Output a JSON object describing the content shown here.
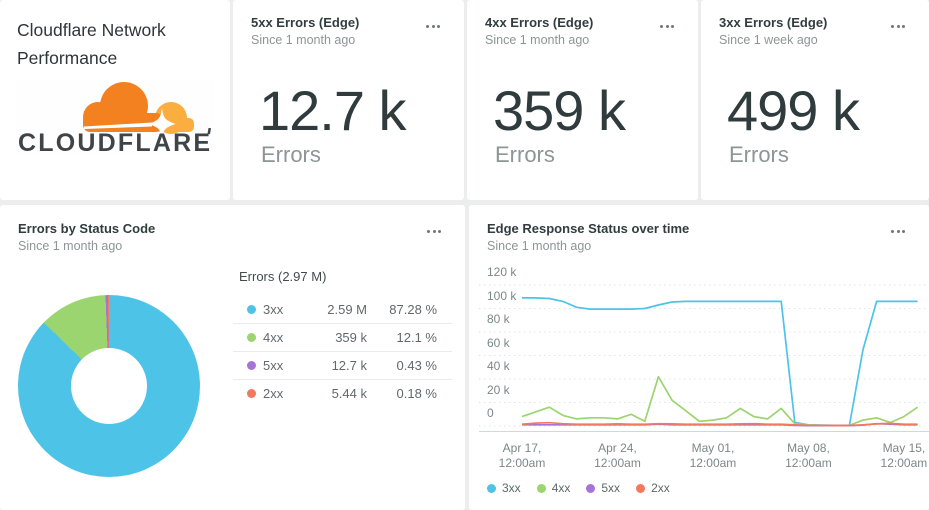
{
  "brand": {
    "title_lines": [
      "Cloudflare Network",
      "Performance"
    ],
    "logo_text": "CLOUDFLARE",
    "logo_orange": "#F48120",
    "logo_orange_light": "#FAAE40",
    "logo_text_color": "#3f4448"
  },
  "stat_cards": [
    {
      "title": "5xx Errors (Edge)",
      "subtitle": "Since 1 month ago",
      "value": "12.7 k",
      "unit": "Errors"
    },
    {
      "title": "4xx Errors (Edge)",
      "subtitle": "Since 1 month ago",
      "value": "359 k",
      "unit": "Errors"
    },
    {
      "title": "3xx Errors (Edge)",
      "subtitle": "Since 1 week ago",
      "value": "499 k",
      "unit": "Errors"
    }
  ],
  "pie_panel": {
    "title": "Errors by Status Code",
    "subtitle": "Since 1 month ago",
    "table_header": "Errors (2.97 M)"
  },
  "time_panel": {
    "title": "Edge Response Status over time",
    "subtitle": "Since 1 month ago"
  },
  "chart_data": [
    {
      "type": "pie",
      "donut": true,
      "title": "Errors by Status Code",
      "timeframe": "Since 1 month ago",
      "total_label": "Errors (2.97 M)",
      "total": "2.97 M",
      "slices": [
        {
          "label": "3xx",
          "value": "2.59 M",
          "pct": 87.28,
          "pct_label": "87.28 %",
          "color": "#4ec3e8"
        },
        {
          "label": "4xx",
          "value": "359 k",
          "pct": 12.1,
          "pct_label": "12.1 %",
          "color": "#9bd56f"
        },
        {
          "label": "5xx",
          "value": "12.7 k",
          "pct": 0.43,
          "pct_label": "0.43 %",
          "color": "#a873d6"
        },
        {
          "label": "2xx",
          "value": "5.44 k",
          "pct": 0.18,
          "pct_label": "0.18 %",
          "color": "#f3795e"
        }
      ]
    },
    {
      "type": "line",
      "title": "Edge Response Status over time",
      "timeframe": "Since 1 month ago",
      "x_unit": "day",
      "x_days": 30,
      "x_ticks": [
        {
          "day": 0,
          "line1": "Apr 17,",
          "line2": "12:00am"
        },
        {
          "day": 7,
          "line1": "Apr 24,",
          "line2": "12:00am"
        },
        {
          "day": 14,
          "line1": "May 01,",
          "line2": "12:00am"
        },
        {
          "day": 21,
          "line1": "May 08,",
          "line2": "12:00am"
        },
        {
          "day": 28,
          "line1": "May 15,",
          "line2": "12:00am"
        }
      ],
      "ylim_k": [
        0,
        120
      ],
      "y_ticks": [
        {
          "v": 120,
          "label": "120 k"
        },
        {
          "v": 100,
          "label": "100 k"
        },
        {
          "v": 80,
          "label": "80 k"
        },
        {
          "v": 60,
          "label": "60 k"
        },
        {
          "v": 40,
          "label": "40 k"
        },
        {
          "v": 20,
          "label": "20 k"
        },
        {
          "v": 0,
          "label": "0"
        }
      ],
      "grid": "dotted-horizontal",
      "legend_position": "bottom",
      "values_unit": "thousands",
      "series": [
        {
          "name": "3xx",
          "color": "#4ec3e8",
          "values_k": [
            109,
            109,
            108.5,
            106,
            101,
            99.5,
            99.5,
            99.5,
            99.5,
            100,
            103,
            105.5,
            106,
            106,
            106,
            106,
            106,
            106,
            106,
            106,
            3,
            1,
            0.8,
            0.6,
            0.5,
            65,
            106,
            106,
            106,
            106
          ]
        },
        {
          "name": "4xx",
          "color": "#9bd56f",
          "values_k": [
            8,
            12,
            16,
            9,
            6,
            7,
            7,
            6,
            10,
            4,
            42,
            22,
            13,
            4,
            5,
            7,
            15,
            8,
            6,
            15,
            2,
            1,
            0.6,
            0.5,
            0.5,
            5,
            7,
            3,
            8,
            16
          ]
        },
        {
          "name": "5xx",
          "color": "#a873d6",
          "values_k": [
            1,
            1,
            1,
            1,
            1,
            1,
            1,
            1,
            1,
            1,
            1.5,
            1,
            1,
            1,
            1,
            1,
            1,
            1,
            1,
            1,
            0.5,
            0.3,
            0.3,
            0.3,
            0.3,
            0.8,
            2,
            1.5,
            1,
            1
          ]
        },
        {
          "name": "2xx",
          "color": "#f3795e",
          "values_k": [
            1.5,
            2.5,
            2.8,
            2,
            1.5,
            1.5,
            1.5,
            1.8,
            1.5,
            1.5,
            2,
            1.8,
            1.5,
            1.5,
            1.5,
            1.5,
            1.8,
            2,
            1.5,
            1.5,
            1,
            0.5,
            0.4,
            0.4,
            0.4,
            1,
            1.8,
            2.2,
            1.5,
            1.5
          ]
        }
      ]
    }
  ]
}
